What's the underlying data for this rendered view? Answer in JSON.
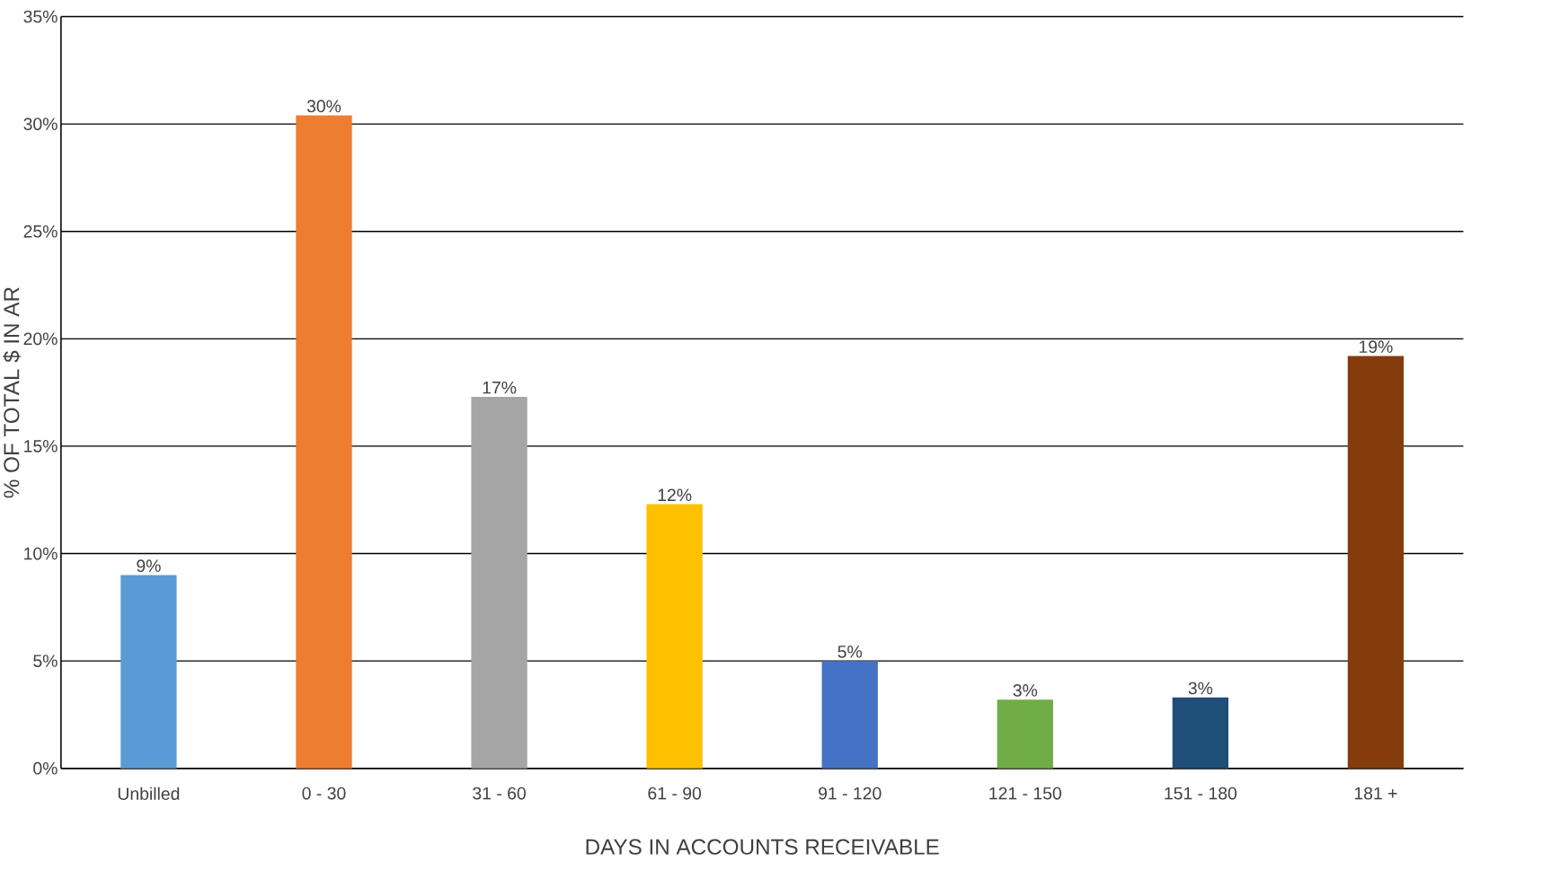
{
  "chart_data": {
    "type": "bar",
    "xlabel": "DAYS IN ACCOUNTS RECEIVABLE",
    "ylabel": "% OF TOTAL $ IN AR",
    "categories": [
      "Unbilled",
      "0 - 30",
      "31 - 60",
      "61 - 90",
      "91 - 120",
      "121 - 150",
      "151 - 180",
      "181 +"
    ],
    "values": [
      9.0,
      30.4,
      17.3,
      12.3,
      5.0,
      3.2,
      3.3,
      19.2
    ],
    "value_labels": [
      "9%",
      "30%",
      "17%",
      "12%",
      "5%",
      "3%",
      "3%",
      "19%"
    ],
    "colors": [
      "#5b9bd5",
      "#ed7d31",
      "#a5a5a5",
      "#ffc000",
      "#4472c4",
      "#70ad47",
      "#1f4e79",
      "#843c0c"
    ],
    "ylim": [
      0,
      35
    ],
    "yticks": [
      {
        "value": 0,
        "label": "0%"
      },
      {
        "value": 5,
        "label": "5%"
      },
      {
        "value": 10,
        "label": "10%"
      },
      {
        "value": 15,
        "label": "15%"
      },
      {
        "value": 20,
        "label": "20%"
      },
      {
        "value": 25,
        "label": "25%"
      },
      {
        "value": 30,
        "label": "30%"
      },
      {
        "value": 35,
        "label": "35%"
      }
    ],
    "grid": "y"
  }
}
